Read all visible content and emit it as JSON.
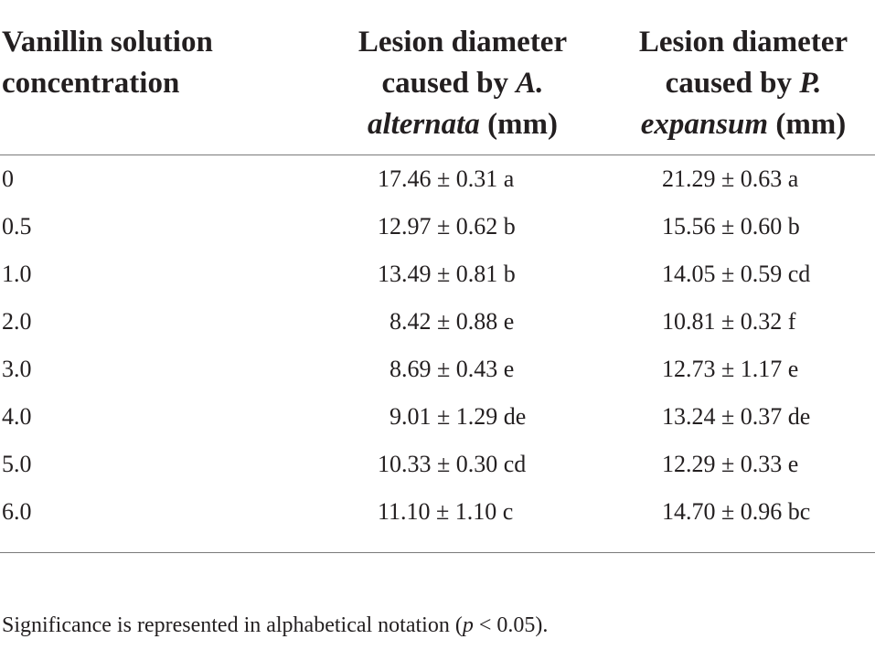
{
  "table": {
    "header": {
      "col1_line1": "Vanillin solution",
      "col1_line2": "concentration",
      "col2_line1": "Lesion diameter",
      "col2_line2_pre": "caused by ",
      "col2_line2_ital": "A.",
      "col2_line3_ital": "alternata",
      "col2_line3_post": " (mm)",
      "col3_line1": "Lesion diameter",
      "col3_line2_pre": "caused by ",
      "col3_line2_ital": "P.",
      "col3_line3_ital": "expansum",
      "col3_line3_post": " (mm)"
    },
    "rows": [
      {
        "concentration": "0",
        "alternata": "17.46 ± 0.31 a",
        "expansum": "21.29 ± 0.63 a"
      },
      {
        "concentration": "0.5",
        "alternata": "12.97 ± 0.62 b",
        "expansum": "15.56 ± 0.60 b"
      },
      {
        "concentration": "1.0",
        "alternata": "13.49 ± 0.81 b",
        "expansum": "14.05 ± 0.59 cd"
      },
      {
        "concentration": "2.0",
        "alternata": "  8.42 ± 0.88 e",
        "expansum": "10.81 ± 0.32 f"
      },
      {
        "concentration": "3.0",
        "alternata": "  8.69 ± 0.43 e",
        "expansum": "12.73 ± 1.17 e"
      },
      {
        "concentration": "4.0",
        "alternata": "  9.01 ± 1.29 de",
        "expansum": "13.24 ± 0.37 de"
      },
      {
        "concentration": "5.0",
        "alternata": "10.33 ± 0.30 cd",
        "expansum": "12.29 ± 0.33 e"
      },
      {
        "concentration": "6.0",
        "alternata": "11.10 ± 1.10 c",
        "expansum": "14.70 ± 0.96 bc"
      }
    ]
  },
  "footnote": {
    "pre": "Significance is represented in alphabetical notation (",
    "ital": "p",
    "post": " < 0.05)."
  }
}
